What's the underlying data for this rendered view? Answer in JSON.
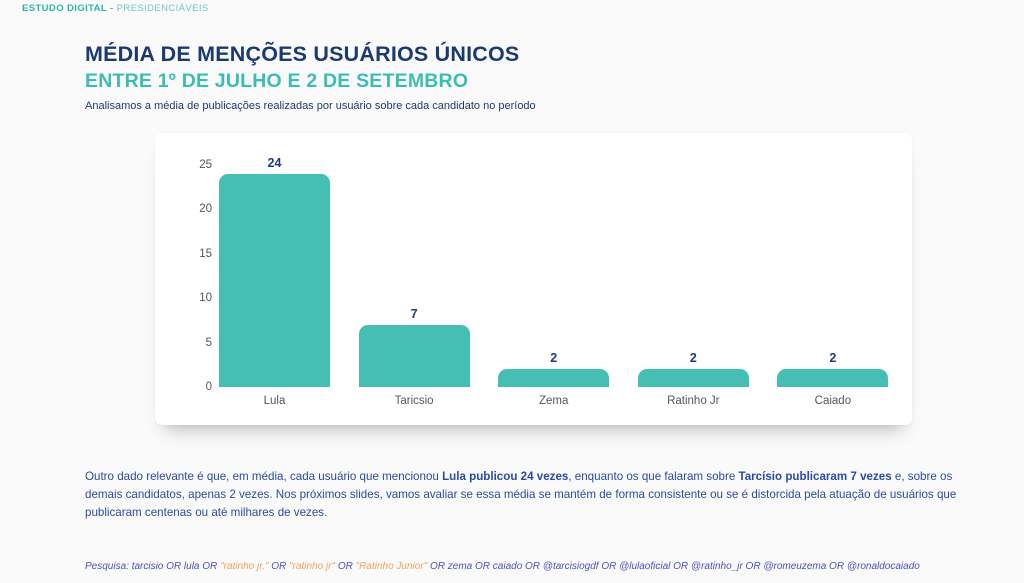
{
  "brand": {
    "bold": "ESTUDO DIGITAL - ",
    "regular": "PRESIDENCIÁVEIS"
  },
  "header": {
    "title": "MÉDIA DE MENÇÕES USUÁRIOS ÚNICOS",
    "subtitle": "ENTRE 1º DE JULHO E 2 DE SETEMBRO",
    "description": "Analisamos a média de publicações realizadas por usuário sobre cada candidato no período"
  },
  "chart_data": {
    "type": "bar",
    "title": "MÉDIA DE MENÇÕES USUÁRIOS ÚNICOS ENTRE 1º DE JULHO E 2 DE SETEMBRO",
    "categories": [
      "Lula",
      "Taricsio",
      "Zema",
      "Ratinho Jr",
      "Caiado"
    ],
    "values": [
      24,
      7,
      2,
      2,
      2
    ],
    "value_labels": [
      "24",
      "7",
      "2",
      "2",
      "2"
    ],
    "xlabel": "",
    "ylabel": "",
    "ylim": [
      0,
      25
    ],
    "yticks": [
      0,
      5,
      10,
      15,
      20,
      25
    ],
    "grid": false,
    "legend": false,
    "bar_color": "#45bfb3",
    "value_label_color": "#1e3c78",
    "axis_label_color": "#55555e"
  },
  "body_text": {
    "segments": [
      {
        "text": "Outro dado relevante é que, em média, cada usuário que mencionou ",
        "bold": false
      },
      {
        "text": "Lula publicou 24 vezes",
        "bold": true
      },
      {
        "text": ", enquanto os que falaram sobre ",
        "bold": false
      },
      {
        "text": "Tarcísio publicaram 7 vezes",
        "bold": true
      },
      {
        "text": " e, sobre os demais candidatos, apenas 2 vezes. Nos próximos slides, vamos avaliar se essa média se mantém de forma consistente ou se é distorcida pela atuação de usuários que publicaram centenas ou até milhares de vezes.",
        "bold": false
      }
    ]
  },
  "footer": {
    "segments": [
      {
        "text": "Pesquisa: tarcisio OR lula OR ",
        "highlight": false
      },
      {
        "text": "\"ratinho jr.\"",
        "highlight": true
      },
      {
        "text": " OR ",
        "highlight": false
      },
      {
        "text": "\"ratinho jr\"",
        "highlight": true
      },
      {
        "text": " OR ",
        "highlight": false
      },
      {
        "text": "\"Ratinho Junior\"",
        "highlight": true
      },
      {
        "text": " OR zema OR caiado OR @tarcisiogdf OR @lulaoficial OR @ratinho_jr OR @romeuzema OR @ronaldocaiado",
        "highlight": false
      }
    ]
  },
  "colors": {
    "accent_teal": "#45bfb3",
    "title_navy": "#1c3a72",
    "body_blue": "#2a4ba3",
    "footer_blue": "#4951be",
    "highlight_orange": "#f2a25c",
    "axis_gray": "#55555e",
    "card_background": "#ffffff",
    "page_background": "#fafafb"
  }
}
